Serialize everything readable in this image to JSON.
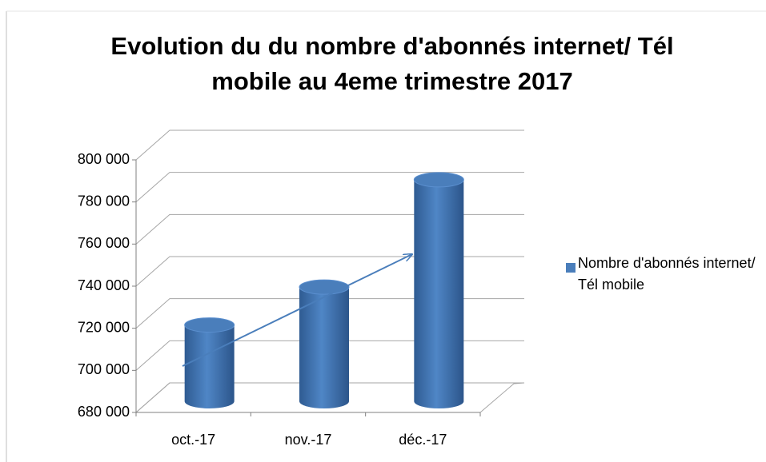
{
  "chart_data": {
    "type": "bar3d",
    "title": "Evolution du du nombre d'abonnés internet/ Tél mobile au 4eme trimestre 2017",
    "categories": [
      "oct.-17",
      "nov.-17",
      "déc.-17"
    ],
    "series": [
      {
        "name": "Nombre d'abonnés internet/ Tél mobile",
        "color": "#4a7ebb",
        "values": [
          717000,
          735000,
          786000
        ]
      }
    ],
    "ylim": [
      680000,
      800000
    ],
    "yticks": [
      {
        "value": 680000,
        "label": "680 000"
      },
      {
        "value": 700000,
        "label": "700 000"
      },
      {
        "value": 720000,
        "label": "720 000"
      },
      {
        "value": 740000,
        "label": "740 000"
      },
      {
        "value": 760000,
        "label": "760 000"
      },
      {
        "value": 780000,
        "label": "780 000"
      },
      {
        "value": 800000,
        "label": "800 000"
      }
    ],
    "grid": true,
    "legend": "right"
  }
}
